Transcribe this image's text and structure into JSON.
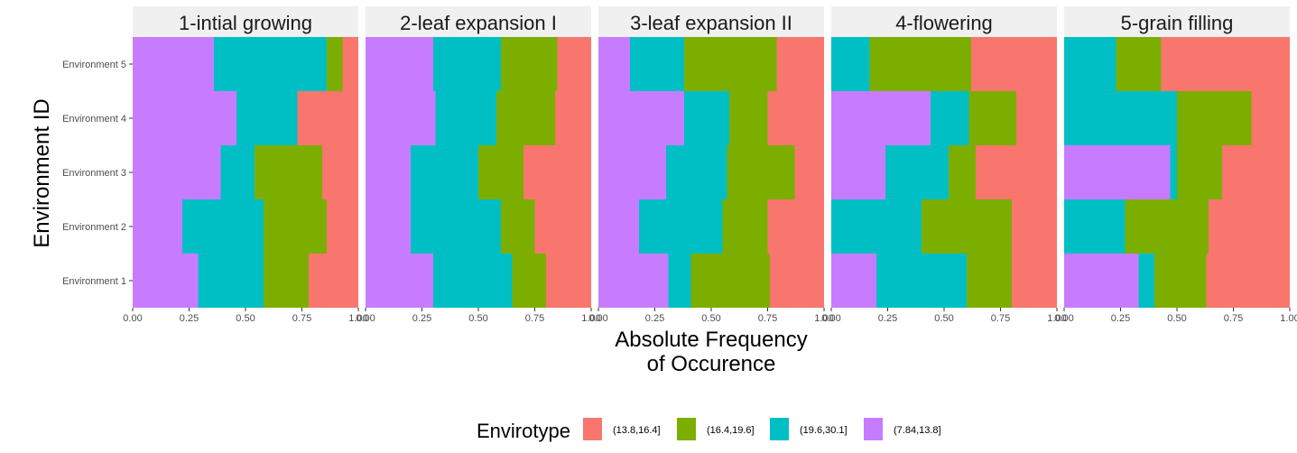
{
  "chart_data": {
    "type": "bar",
    "orientation": "horizontal",
    "stacked": true,
    "xlabel": [
      "Absolute Frequency",
      "of Occurence"
    ],
    "ylabel": "Environment ID",
    "xlim": [
      0,
      1
    ],
    "xticks": [
      "0.00",
      "0.25",
      "0.50",
      "0.75",
      "1.00"
    ],
    "categories": [
      "Environment 1",
      "Environment 2",
      "Environment 3",
      "Environment 4",
      "Environment 5"
    ],
    "legend": {
      "title": "Envirotype",
      "position": "bottom",
      "entries": [
        {
          "label": "(13.8,16.4]",
          "color": "#F8766D"
        },
        {
          "label": "(16.4,19.6]",
          "color": "#7CAE00"
        },
        {
          "label": "(19.6,30.1]",
          "color": "#00BFC4"
        },
        {
          "label": "(7.84,13.8]",
          "color": "#C77CFF"
        }
      ]
    },
    "stack_order": [
      "(7.84,13.8]",
      "(19.6,30.1]",
      "(16.4,19.6]",
      "(13.8,16.4]"
    ],
    "panels": [
      {
        "title": "1-intial growing",
        "values": {
          "Environment 1": [
            0.29,
            0.29,
            0.2,
            0.22
          ],
          "Environment 2": [
            0.22,
            0.36,
            0.28,
            0.14
          ],
          "Environment 3": [
            0.39,
            0.15,
            0.3,
            0.16
          ],
          "Environment 4": [
            0.46,
            0.27,
            0.0,
            0.27
          ],
          "Environment 5": [
            0.36,
            0.5,
            0.07,
            0.07
          ]
        }
      },
      {
        "title": "2-leaf expansion I",
        "values": {
          "Environment 1": [
            0.3,
            0.35,
            0.15,
            0.2
          ],
          "Environment 2": [
            0.2,
            0.4,
            0.15,
            0.25
          ],
          "Environment 3": [
            0.2,
            0.3,
            0.2,
            0.3
          ],
          "Environment 4": [
            0.31,
            0.27,
            0.26,
            0.16
          ],
          "Environment 5": [
            0.3,
            0.3,
            0.25,
            0.15
          ]
        }
      },
      {
        "title": "3-leaf expansion II",
        "values": {
          "Environment 1": [
            0.31,
            0.1,
            0.35,
            0.24
          ],
          "Environment 2": [
            0.18,
            0.37,
            0.2,
            0.25
          ],
          "Environment 3": [
            0.3,
            0.27,
            0.3,
            0.13
          ],
          "Environment 4": [
            0.38,
            0.2,
            0.17,
            0.25
          ],
          "Environment 5": [
            0.14,
            0.24,
            0.41,
            0.21
          ]
        }
      },
      {
        "title": "4-flowering",
        "values": {
          "Environment 1": [
            0.2,
            0.4,
            0.2,
            0.2
          ],
          "Environment 2": [
            0.0,
            0.4,
            0.4,
            0.2
          ],
          "Environment 3": [
            0.24,
            0.28,
            0.12,
            0.36
          ],
          "Environment 4": [
            0.44,
            0.17,
            0.21,
            0.18
          ],
          "Environment 5": [
            0.0,
            0.17,
            0.45,
            0.38
          ]
        }
      },
      {
        "title": "5-grain filling",
        "values": {
          "Environment 1": [
            0.33,
            0.07,
            0.23,
            0.37
          ],
          "Environment 2": [
            0.0,
            0.27,
            0.37,
            0.36
          ],
          "Environment 3": [
            0.47,
            0.03,
            0.2,
            0.3
          ],
          "Environment 4": [
            0.0,
            0.5,
            0.33,
            0.17
          ],
          "Environment 5": [
            0.0,
            0.23,
            0.2,
            0.57
          ]
        }
      }
    ]
  }
}
